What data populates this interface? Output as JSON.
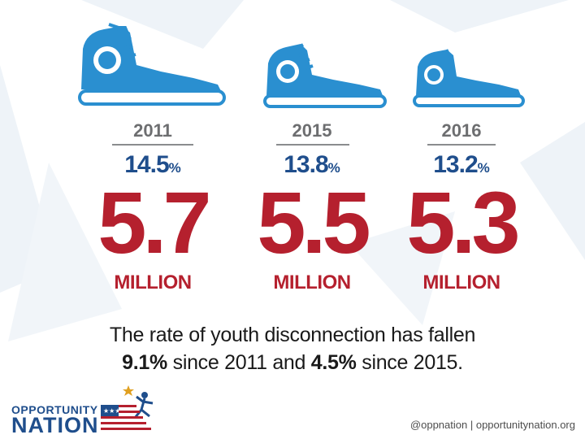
{
  "columns": [
    {
      "year": "2011",
      "rate_value": "14.5",
      "rate_unit": "%",
      "count": "5.7",
      "count_unit": "MILLION"
    },
    {
      "year": "2015",
      "rate_value": "13.8",
      "rate_unit": "%",
      "count": "5.5",
      "count_unit": "MILLION"
    },
    {
      "year": "2016",
      "rate_value": "13.2",
      "rate_unit": "%",
      "count": "5.3",
      "count_unit": "MILLION"
    }
  ],
  "caption": {
    "line1": "The rate of youth disconnection has fallen",
    "pct1": "9.1%",
    "mid": " since 2011 and ",
    "pct2": "4.5%",
    "end": " since 2015."
  },
  "logo": {
    "word1": "OPPORTUNITY",
    "word2": "NATION"
  },
  "footer": {
    "handle": "@oppnation",
    "sep": " | ",
    "site": "opportunitynation.org"
  },
  "colors": {
    "shoe_blue": "#2a8fd0",
    "number_red": "#b5202e",
    "rate_blue": "#1f4e8c"
  },
  "icons": {
    "shoe": "sneaker-icon",
    "logo_mark": "flag-runner-icon"
  }
}
